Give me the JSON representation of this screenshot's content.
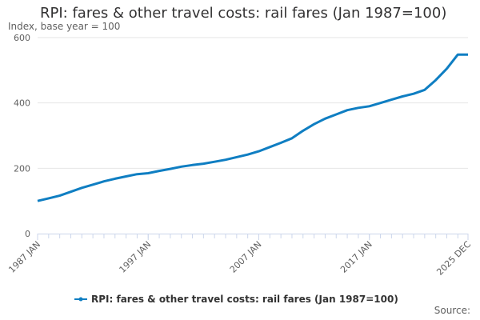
{
  "chart_data": {
    "type": "line",
    "title": "RPI: fares & other travel costs: rail fares (Jan 1987=100)",
    "subtitle": "Index, base year = 100",
    "source_label": "Source:",
    "y_ticks": [
      0,
      200,
      400,
      600
    ],
    "ylim": [
      0,
      600
    ],
    "x_ticks": [
      "1987 JAN",
      "1997 JAN",
      "2007 JAN",
      "2017 JAN",
      "2025 DEC"
    ],
    "x_start": "1987-01",
    "x_end": "2025-12",
    "legend_position": "bottom",
    "grid": true,
    "color": "#0f7ec2",
    "series": [
      {
        "name": "RPI: fares & other travel costs: rail fares (Jan 1987=100)",
        "x": [
          "1987-01",
          "1988-01",
          "1989-01",
          "1990-01",
          "1991-01",
          "1992-01",
          "1993-01",
          "1994-01",
          "1995-01",
          "1996-01",
          "1997-01",
          "1998-01",
          "1999-01",
          "2000-01",
          "2001-01",
          "2002-01",
          "2003-01",
          "2004-01",
          "2005-01",
          "2006-01",
          "2007-01",
          "2008-01",
          "2009-01",
          "2010-01",
          "2011-01",
          "2012-01",
          "2013-01",
          "2014-01",
          "2015-01",
          "2016-01",
          "2017-01",
          "2018-01",
          "2019-01",
          "2020-01",
          "2021-01",
          "2022-01",
          "2023-01",
          "2024-01",
          "2025-01",
          "2025-12"
        ],
        "values": [
          100,
          108,
          116,
          128,
          140,
          150,
          160,
          168,
          175,
          182,
          185,
          192,
          198,
          205,
          210,
          214,
          220,
          226,
          234,
          242,
          252,
          265,
          278,
          292,
          315,
          335,
          352,
          365,
          378,
          385,
          390,
          400,
          410,
          420,
          428,
          440,
          470,
          505,
          548,
          548
        ]
      }
    ]
  }
}
